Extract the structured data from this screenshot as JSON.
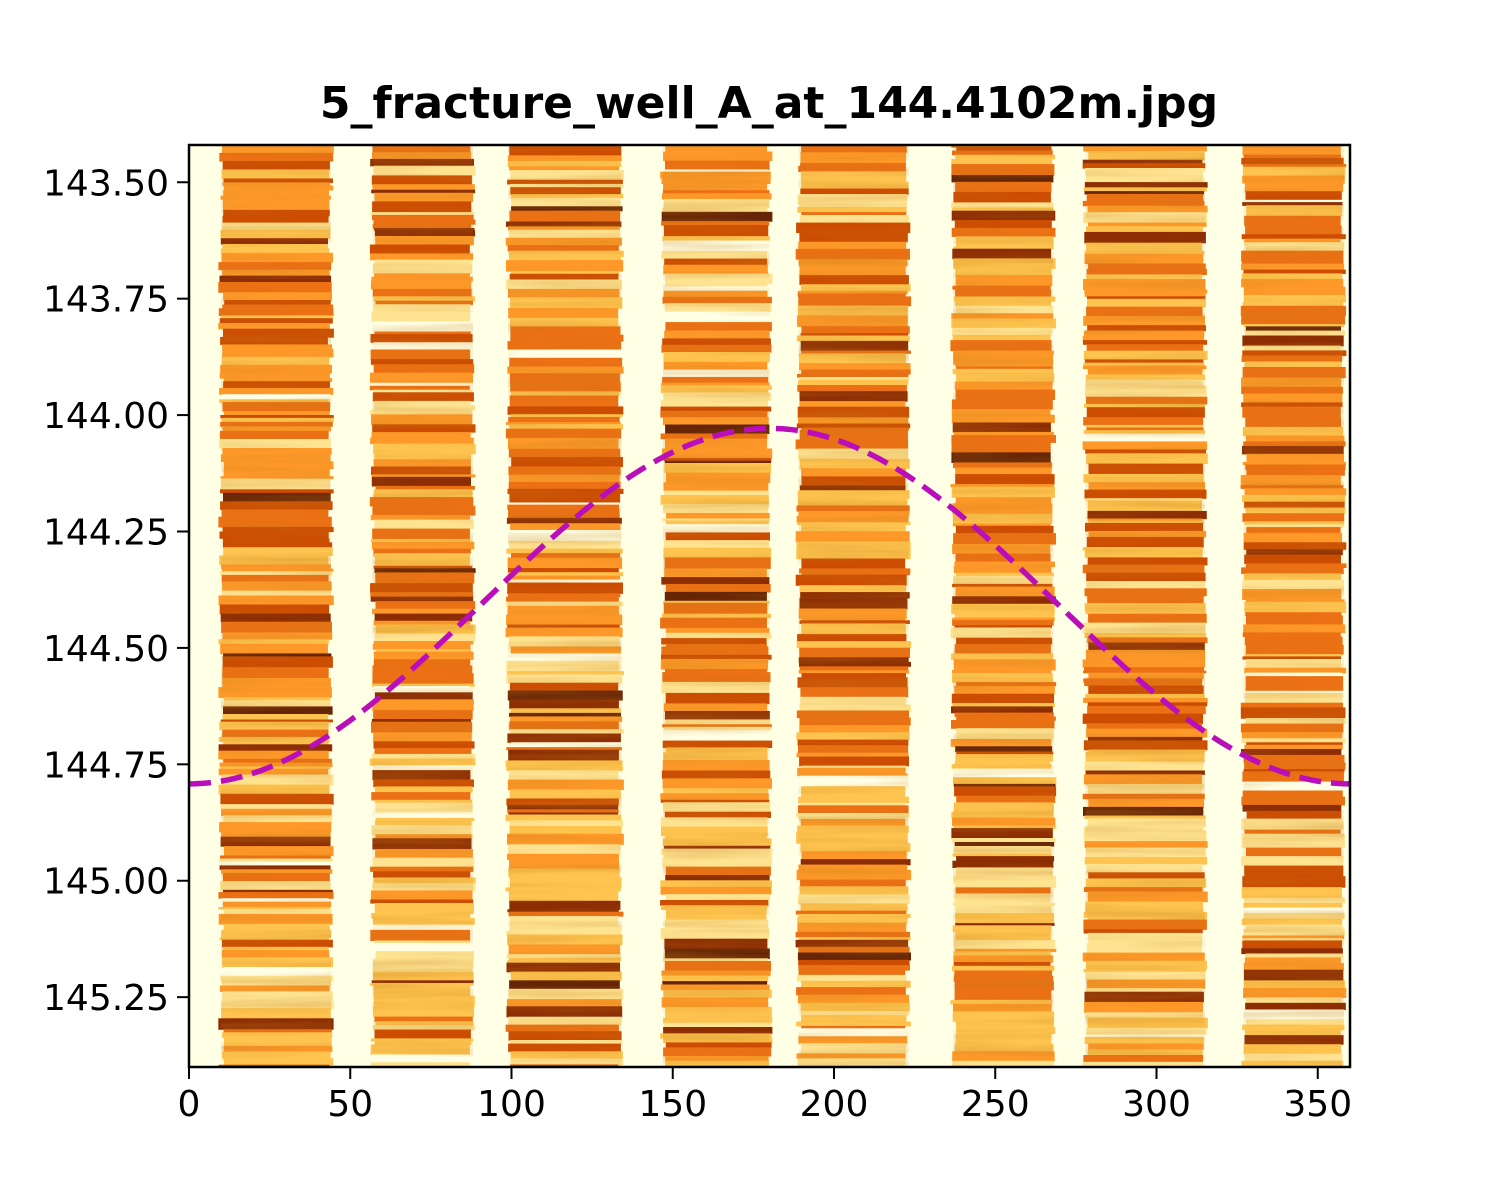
{
  "chart_data": {
    "type": "line",
    "title": "5_fracture_well_A_at_144.4102m.jpg",
    "xlabel": "",
    "ylabel": "",
    "xlim": [
      0,
      360
    ],
    "ylim": [
      145.4,
      143.42
    ],
    "y_inverted": true,
    "grid": false,
    "x_ticks": [
      "0",
      "50",
      "100",
      "150",
      "200",
      "250",
      "300",
      "350"
    ],
    "x_tick_values": [
      0,
      50,
      100,
      150,
      200,
      250,
      300,
      350
    ],
    "y_ticks": [
      "143.50",
      "143.75",
      "144.00",
      "144.25",
      "144.50",
      "144.75",
      "145.00",
      "145.25"
    ],
    "y_tick_values": [
      143.5,
      143.75,
      144.0,
      144.25,
      144.5,
      144.75,
      145.0,
      145.25
    ],
    "background_image": "borehole-image-log",
    "colormap": [
      "#ffffe5",
      "#fee391",
      "#fec44f",
      "#fe9929",
      "#ec7014",
      "#cc4c02",
      "#8c2d04",
      "#662506"
    ],
    "series": [
      {
        "type": "sinusoid",
        "style": "dashed",
        "color": "#bb0ebb",
        "center_depth": 144.4102,
        "amplitude": 0.3817,
        "trough_azimuth": 180,
        "x": [
          0,
          30,
          60,
          90,
          120,
          150,
          180,
          210,
          240,
          270,
          300,
          330,
          360
        ],
        "values": [
          144.792,
          144.741,
          144.601,
          144.41,
          144.219,
          144.079,
          144.029,
          144.079,
          144.219,
          144.41,
          144.601,
          144.741,
          144.792
        ]
      }
    ]
  }
}
